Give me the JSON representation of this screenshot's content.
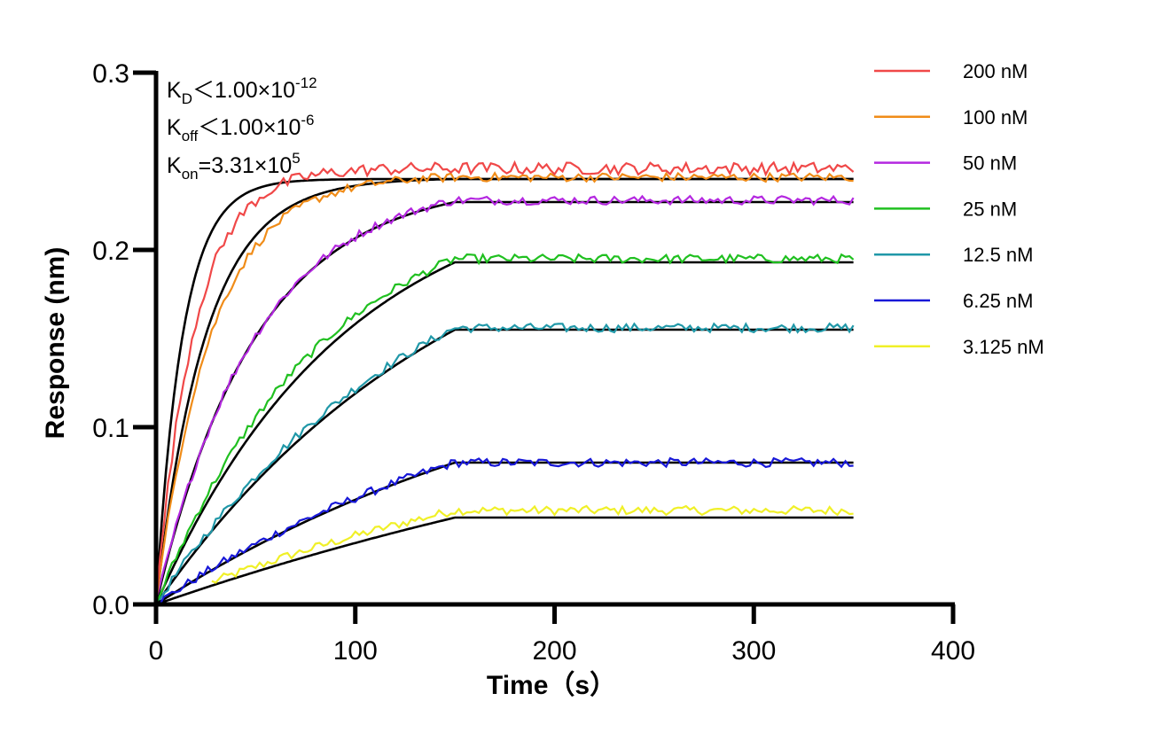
{
  "chart_data": {
    "type": "line",
    "xlabel": "Time（s）",
    "ylabel": "Response (nm)",
    "xlim": [
      0,
      400
    ],
    "ylim": [
      0,
      0.3
    ],
    "x_ticks": [
      "0",
      "100",
      "200",
      "300",
      "400"
    ],
    "y_ticks": [
      "0.0",
      "0.1",
      "0.2",
      "0.3"
    ],
    "grid": false,
    "legend_position": "top-right",
    "annotations": {
      "kd": {
        "main": "K",
        "sub": "D",
        "rest": "＜1.00×10",
        "sup": "-12"
      },
      "koff": {
        "main": "K",
        "sub": "off",
        "rest": "＜1.00×10",
        "sup": "-6"
      },
      "kon": {
        "main": "K",
        "sub": "on",
        "rest": "=3.31×10",
        "sup": "5"
      }
    },
    "association_end_s": 150,
    "series": [
      {
        "name": "200 nM",
        "color": "#f04848",
        "plateau": 0.246,
        "rate": 0.052,
        "start": 0,
        "noise": 0.0035
      },
      {
        "name": "100 nM",
        "color": "#f08c18",
        "plateau": 0.241,
        "rate": 0.036,
        "start": 0,
        "noise": 0.0025
      },
      {
        "name": "50 nM",
        "color": "#b428e0",
        "plateau": 0.228,
        "rate": 0.02,
        "start": 0,
        "noise": 0.0025
      },
      {
        "name": "25 nM",
        "color": "#20c020",
        "plateau": 0.195,
        "rate": 0.012,
        "start": 0,
        "noise": 0.0025
      },
      {
        "name": "12.5 nM",
        "color": "#2098a8",
        "plateau": 0.156,
        "rate": 0.0075,
        "start": 0,
        "noise": 0.0025
      },
      {
        "name": "6.25 nM",
        "color": "#1818d8",
        "plateau": 0.08,
        "rate": 0.0053,
        "start": 0,
        "noise": 0.0025
      },
      {
        "name": "3.125 nM",
        "color": "#f0f028",
        "plateau": 0.053,
        "rate": 0.004,
        "start": 28,
        "noise": 0.0025
      }
    ],
    "fits": [
      {
        "plateau": 0.24,
        "rate": 0.075
      },
      {
        "plateau": 0.24,
        "rate": 0.04
      },
      {
        "plateau": 0.227,
        "rate": 0.02
      },
      {
        "plateau": 0.193,
        "rate": 0.0105
      },
      {
        "plateau": 0.155,
        "rate": 0.0065
      },
      {
        "plateau": 0.08,
        "rate": 0.0045
      },
      {
        "plateau": 0.049,
        "rate": 0.0025
      }
    ],
    "end_time_s": 350
  }
}
